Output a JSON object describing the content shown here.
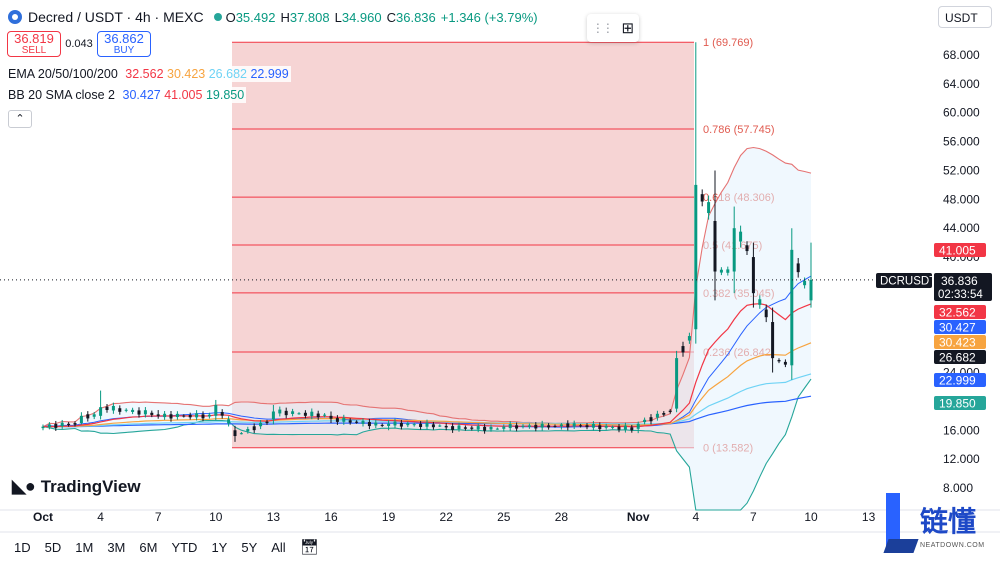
{
  "header": {
    "symbol": "Decred / USDT · 4h · MEXC",
    "open_label": "O",
    "open": "35.492",
    "high_label": "H",
    "high": "37.808",
    "low_label": "L",
    "low": "34.960",
    "close_label": "C",
    "close": "36.836",
    "change": "+1.346 (+3.79%)"
  },
  "trade": {
    "sell_price": "36.819",
    "sell_label": "SELL",
    "spread": "0.043",
    "buy_price": "36.862",
    "buy_label": "BUY"
  },
  "indicators": {
    "ema_label": "EMA 20/50/100/200",
    "ema20": "32.562",
    "ema50": "30.423",
    "ema100": "26.682",
    "ema200": "22.999",
    "bb_label": "BB 20 SMA close 2",
    "bb_mid": "30.427",
    "bb_upper": "41.005",
    "bb_lower": "19.850"
  },
  "ui": {
    "collapse": "⌃",
    "currency": "USDT",
    "logo_text": "TradingView",
    "time_ranges": [
      "1D",
      "5D",
      "1M",
      "3M",
      "6M",
      "YTD",
      "1Y",
      "5Y",
      "All"
    ]
  },
  "watermark": {
    "cn": "链懂",
    "en": "NEATDOWN.COM"
  },
  "colors": {
    "up": "#089981",
    "down": "#131722",
    "ema20": "#f23645",
    "ema50": "#f7a440",
    "ema100": "#6fd3f5",
    "ema200": "#2962ff",
    "bb_band": "#e57373",
    "bb_mid": "#2962ff",
    "fib_zone": "#f4cccc",
    "fib_line": "#f23645"
  },
  "chart_data": {
    "type": "candlestick",
    "price_axis": {
      "ticks": [
        8,
        12,
        16,
        20,
        24,
        28,
        32,
        36,
        40,
        44,
        48,
        52,
        56,
        60,
        64,
        68
      ],
      "tick_labels": [
        "8.000",
        "12.000",
        "16.000",
        "20.000",
        "24.000",
        "28.000",
        "32.000",
        "36.000",
        "40.000",
        "44.000",
        "48.000",
        "52.000",
        "56.000",
        "60.000",
        "64.000",
        "68.000"
      ]
    },
    "time_axis": {
      "labels": [
        "Oct",
        "4",
        "7",
        "10",
        "13",
        "16",
        "19",
        "22",
        "25",
        "28",
        "Nov",
        "4",
        "7",
        "10",
        "13"
      ],
      "dates": [
        "Oct 1",
        "Oct 4",
        "Oct 7",
        "Oct 10",
        "Oct 13",
        "Oct 16",
        "Oct 19",
        "Oct 22",
        "Oct 25",
        "Oct 28",
        "Nov 1",
        "Nov 4",
        "Nov 7",
        "Nov 10",
        "Nov 13"
      ]
    },
    "fibonacci": {
      "start_date": "Oct 11",
      "end_date": "Nov 4",
      "levels": [
        {
          "ratio": "1",
          "price": 69.769,
          "label": "1 (69.769)"
        },
        {
          "ratio": "0.786",
          "price": 57.745,
          "label": "0.786 (57.745)"
        },
        {
          "ratio": "0.618",
          "price": 48.306,
          "label": "0.618 (48.306)"
        },
        {
          "ratio": "0.5",
          "price": 41.675,
          "label": "0.5 (41.675)"
        },
        {
          "ratio": "0.382",
          "price": 35.045,
          "label": "0.382 (35.045)"
        },
        {
          "ratio": "0.236",
          "price": 26.842,
          "label": "0.236 (26.842)"
        },
        {
          "ratio": "0",
          "price": 13.582,
          "label": "0 (13.582)"
        }
      ]
    },
    "last_price": {
      "symbol": "DCRUSDT",
      "price": "36.836",
      "countdown": "02:33:54"
    },
    "price_tags": [
      {
        "value": "41.005",
        "color": "#f23645"
      },
      {
        "value": "32.562",
        "color": "#f23645"
      },
      {
        "value": "30.427",
        "color": "#2962ff"
      },
      {
        "value": "30.423",
        "color": "#f7a440"
      },
      {
        "value": "26.682",
        "color": "#131722"
      },
      {
        "value": "22.999",
        "color": "#2962ff"
      },
      {
        "value": "19.850",
        "color": "#26a69a"
      }
    ],
    "key_candles": [
      {
        "date": "Oct 1",
        "o": 16.3,
        "h": 16.8,
        "l": 16.0,
        "c": 16.5
      },
      {
        "date": "Oct 3",
        "o": 17.0,
        "h": 18.5,
        "l": 16.8,
        "c": 18.0
      },
      {
        "date": "Oct 4",
        "o": 18.0,
        "h": 21.5,
        "l": 17.5,
        "c": 19.2
      },
      {
        "date": "Oct 7",
        "o": 18.2,
        "h": 18.8,
        "l": 17.6,
        "c": 18.0
      },
      {
        "date": "Oct 10",
        "o": 18.0,
        "h": 20.2,
        "l": 17.4,
        "c": 19.5
      },
      {
        "date": "Oct 11",
        "o": 16.0,
        "h": 16.6,
        "l": 14.4,
        "c": 15.2
      },
      {
        "date": "Oct 13",
        "o": 17.5,
        "h": 19.5,
        "l": 16.8,
        "c": 18.6
      },
      {
        "date": "Oct 16",
        "o": 18.0,
        "h": 18.6,
        "l": 17.0,
        "c": 17.6
      },
      {
        "date": "Oct 19",
        "o": 16.6,
        "h": 17.4,
        "l": 16.0,
        "c": 16.9
      },
      {
        "date": "Oct 22",
        "o": 16.6,
        "h": 17.0,
        "l": 16.0,
        "c": 16.4
      },
      {
        "date": "Oct 25",
        "o": 16.2,
        "h": 16.8,
        "l": 15.8,
        "c": 16.5
      },
      {
        "date": "Oct 28",
        "o": 16.6,
        "h": 17.0,
        "l": 16.1,
        "c": 16.8
      },
      {
        "date": "Nov 1",
        "o": 16.2,
        "h": 17.2,
        "l": 15.6,
        "c": 16.9
      },
      {
        "date": "Nov 3",
        "o": 19.0,
        "h": 27.0,
        "l": 18.5,
        "c": 26.0
      },
      {
        "date": "Nov 4",
        "o": 30.0,
        "h": 69.77,
        "l": 28.0,
        "c": 50.0
      },
      {
        "date": "Nov 5",
        "o": 45.0,
        "h": 52.0,
        "l": 34.0,
        "c": 38.0
      },
      {
        "date": "Nov 6",
        "o": 38.0,
        "h": 47.0,
        "l": 35.0,
        "c": 44.0
      },
      {
        "date": "Nov 7",
        "o": 40.0,
        "h": 42.0,
        "l": 33.0,
        "c": 35.0
      },
      {
        "date": "Nov 8",
        "o": 31.0,
        "h": 33.0,
        "l": 24.0,
        "c": 26.0
      },
      {
        "date": "Nov 9",
        "o": 25.0,
        "h": 44.0,
        "l": 23.0,
        "c": 41.0
      },
      {
        "date": "Nov 10",
        "o": 34.0,
        "h": 42.0,
        "l": 33.0,
        "c": 36.836
      }
    ]
  }
}
